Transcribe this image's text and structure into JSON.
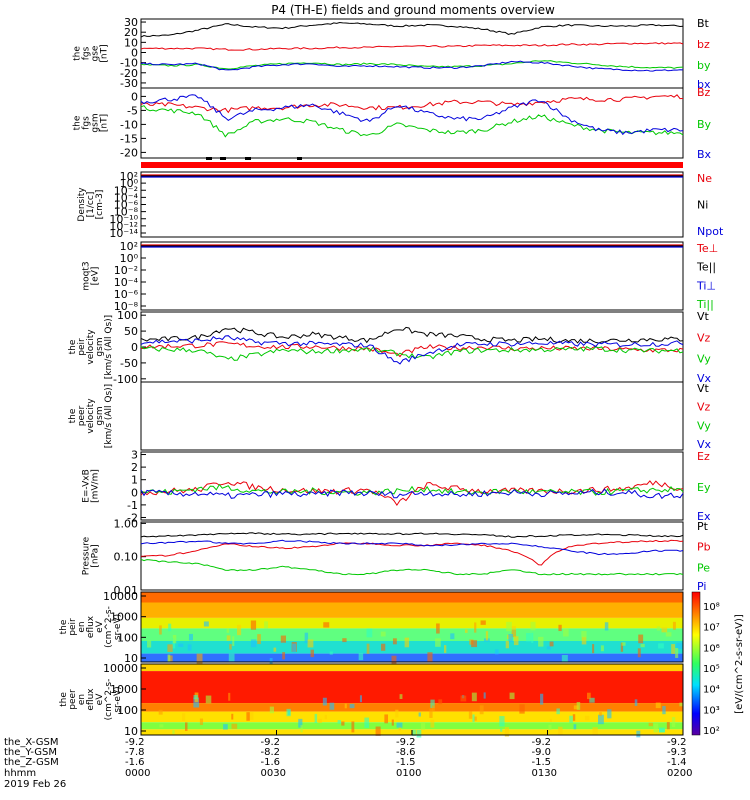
{
  "title": "P4 (TH-E) fields and ground moments overview",
  "colors": {
    "black": "#000000",
    "red": "#e8000b",
    "green": "#00c800",
    "blue": "#0000dc"
  },
  "chart_data": [
    {
      "type": "line",
      "id": "p1",
      "ylabel": [
        "the",
        "fgs",
        "gse",
        "[nT]"
      ],
      "ticks": [
        "30",
        "20",
        "10",
        "0",
        "-10",
        "-20",
        "-30"
      ],
      "tickvals": [
        30,
        20,
        10,
        0,
        -10,
        -20,
        -30
      ],
      "ylim": [
        -35,
        33
      ],
      "series": [
        {
          "name": "Bt",
          "color": "#000000",
          "values": [
            16,
            17,
            22,
            28,
            25,
            24,
            27,
            29,
            28,
            26,
            27,
            26,
            23,
            18,
            25,
            27,
            26,
            26,
            27,
            26
          ]
        },
        {
          "name": "bz",
          "color": "#e8000b",
          "values": [
            4,
            4,
            4,
            3,
            3,
            4,
            4,
            5,
            5,
            6,
            6,
            6,
            7,
            7,
            7,
            8,
            8,
            9,
            9,
            9
          ]
        },
        {
          "name": "by",
          "color": "#00c800",
          "values": [
            -12,
            -13,
            -12,
            -16,
            -13,
            -11,
            -10,
            -12,
            -11,
            -12,
            -14,
            -14,
            -13,
            -11,
            -8,
            -10,
            -12,
            -14,
            -15,
            -15
          ]
        },
        {
          "name": "bx",
          "color": "#0000dc",
          "values": [
            -11,
            -12,
            -11,
            -18,
            -14,
            -12,
            -11,
            -14,
            -13,
            -14,
            -15,
            -15,
            -13,
            -9,
            -10,
            -13,
            -16,
            -17,
            -18,
            -17
          ]
        }
      ]
    },
    {
      "type": "line",
      "id": "p2",
      "ylabel": [
        "the",
        "fgs",
        "gsm",
        "[nT]"
      ],
      "ticks": [
        "0",
        "-5",
        "-10",
        "-15",
        "-20"
      ],
      "tickvals": [
        0,
        -5,
        -10,
        -15,
        -20
      ],
      "ylim": [
        -22,
        3
      ],
      "series": [
        {
          "name": "Bz",
          "color": "#e8000b",
          "values": [
            -3,
            -3,
            -4,
            -5,
            -4,
            -4,
            -3,
            -3,
            -4,
            -4,
            -3,
            -2,
            -2,
            -3,
            -2,
            -1,
            -1,
            -1,
            0,
            0
          ]
        },
        {
          "name": "By",
          "color": "#00c800",
          "values": [
            -4,
            -5,
            -6,
            -14,
            -9,
            -8,
            -9,
            -12,
            -14,
            -10,
            -12,
            -13,
            -12,
            -9,
            -7,
            -10,
            -12,
            -13,
            -13,
            -13
          ]
        },
        {
          "name": "Bx",
          "color": "#0000dc",
          "values": [
            -2,
            -1,
            0,
            -8,
            -5,
            -4,
            -3,
            -6,
            -9,
            -3,
            -6,
            -8,
            -8,
            -4,
            -1,
            -8,
            -12,
            -13,
            -12,
            -12
          ]
        }
      ]
    },
    {
      "type": "line",
      "id": "p3",
      "ylabel": [
        "Density",
        "[1/cc]",
        "[cm-3]"
      ],
      "ticks": [
        "10²",
        "10⁰",
        "10⁻²",
        "10⁻⁴",
        "10⁻⁶",
        "10⁻⁸",
        "10⁻¹⁰",
        "10⁻¹²",
        "10⁻¹⁴"
      ],
      "legend": [
        {
          "name": "Ne",
          "color": "#e8000b"
        },
        {
          "name": "Ni",
          "color": "#000000"
        },
        {
          "name": "Npot",
          "color": "#0000dc"
        }
      ]
    },
    {
      "type": "line",
      "id": "p4",
      "ylabel": [
        "moqt3",
        "[eV]"
      ],
      "ticks": [
        "10²",
        "10⁰",
        "10⁻²",
        "10⁻⁴",
        "10⁻⁶",
        "10⁻⁸"
      ],
      "legend": [
        {
          "name": "Te⊥",
          "color": "#e8000b"
        },
        {
          "name": "Te||",
          "color": "#000000"
        },
        {
          "name": "Ti⊥",
          "color": "#0000dc"
        },
        {
          "name": "Ti||",
          "color": "#00c800"
        }
      ]
    },
    {
      "type": "line",
      "id": "p5",
      "ylabel": [
        "the",
        "peir",
        "velocity",
        "gsm",
        "[km/s (All Qs)]"
      ],
      "ticks": [
        "100",
        "50",
        "0",
        "-50",
        "-100"
      ],
      "tickvals": [
        100,
        50,
        0,
        -50,
        -100
      ],
      "ylim": [
        -110,
        110
      ],
      "series": [
        {
          "name": "Vt",
          "color": "#000000",
          "values": [
            22,
            25,
            30,
            60,
            45,
            30,
            40,
            30,
            20,
            60,
            40,
            35,
            25,
            20,
            25,
            20,
            20,
            22,
            25,
            24
          ]
        },
        {
          "name": "Vz",
          "color": "#e8000b",
          "values": [
            0,
            3,
            5,
            10,
            3,
            0,
            2,
            -3,
            -5,
            -25,
            0,
            -3,
            0,
            -5,
            -4,
            -5,
            -5,
            -8,
            -10,
            -10
          ]
        },
        {
          "name": "Vy",
          "color": "#00c800",
          "values": [
            -5,
            -8,
            -10,
            -40,
            -25,
            -10,
            -15,
            -10,
            -8,
            -20,
            -35,
            -15,
            -10,
            -10,
            -8,
            -8,
            -5,
            -10,
            -12,
            -10
          ]
        },
        {
          "name": "Vx",
          "color": "#0000dc",
          "values": [
            15,
            18,
            20,
            30,
            15,
            12,
            10,
            8,
            5,
            -50,
            -20,
            5,
            10,
            10,
            12,
            10,
            8,
            8,
            10,
            12
          ]
        }
      ]
    },
    {
      "type": "line",
      "id": "p6",
      "ylabel": [
        "the",
        "peer",
        "velocity",
        "gsm",
        "[km/s (All Qs)]"
      ],
      "ticks": [],
      "legend": [
        {
          "name": "Vt",
          "color": "#000000"
        },
        {
          "name": "Vz",
          "color": "#e8000b"
        },
        {
          "name": "Vy",
          "color": "#00c800"
        },
        {
          "name": "Vx",
          "color": "#0000dc"
        }
      ]
    },
    {
      "type": "line",
      "id": "p7",
      "ylabel": [
        "E=-VxB",
        "[mV/m]"
      ],
      "ticks": [
        "3",
        "2",
        "1",
        "0",
        "-1",
        "-2"
      ],
      "tickvals": [
        3,
        2,
        1,
        0,
        -1,
        -2
      ],
      "ylim": [
        -2.2,
        3.2
      ],
      "series": [
        {
          "name": "Ez",
          "color": "#e8000b",
          "values": [
            0,
            0.1,
            0.2,
            0.9,
            0.4,
            0.2,
            0.1,
            0.1,
            0.2,
            -0.9,
            0.6,
            0.3,
            0.1,
            0.1,
            0.1,
            0.1,
            0.2,
            0.3,
            0.8,
            0.3
          ]
        },
        {
          "name": "Ey",
          "color": "#00c800",
          "values": [
            0.1,
            0,
            0.3,
            0.4,
            0.1,
            0,
            0.1,
            0,
            0,
            0.1,
            0.3,
            0,
            0,
            0.1,
            0,
            0,
            0,
            0.1,
            0.2,
            0.2
          ]
        },
        {
          "name": "Ex",
          "color": "#0000dc",
          "values": [
            0,
            -0.1,
            -0.1,
            -0.3,
            -0.2,
            -0.1,
            -0.2,
            0,
            -0.1,
            -0.2,
            0,
            -0.2,
            -0.1,
            0,
            -0.1,
            -0.1,
            0,
            0,
            -0.3,
            -0.2
          ]
        }
      ]
    },
    {
      "type": "line",
      "id": "p8",
      "ylabel": [
        "Pressure",
        "[nPa]"
      ],
      "ticks": [
        "1.00",
        "0.10",
        "0.01"
      ],
      "tickvals": [
        1,
        0.1,
        0.01
      ],
      "ylim": [
        0.01,
        1.1
      ],
      "log": true,
      "series": [
        {
          "name": "Pt",
          "color": "#000000",
          "values": [
            0.4,
            0.42,
            0.45,
            0.5,
            0.5,
            0.48,
            0.47,
            0.5,
            0.5,
            0.48,
            0.5,
            0.48,
            0.45,
            0.4,
            0.42,
            0.44,
            0.46,
            0.45,
            0.42,
            0.42
          ]
        },
        {
          "name": "Pb",
          "color": "#e8000b",
          "values": [
            0.1,
            0.11,
            0.15,
            0.25,
            0.2,
            0.18,
            0.2,
            0.25,
            0.25,
            0.22,
            0.22,
            0.25,
            0.22,
            0.15,
            0.05,
            0.2,
            0.25,
            0.28,
            0.3,
            0.3
          ]
        },
        {
          "name": "Pe",
          "color": "#00c800",
          "values": [
            0.08,
            0.07,
            0.06,
            0.04,
            0.04,
            0.05,
            0.04,
            0.03,
            0.03,
            0.04,
            0.04,
            0.03,
            0.03,
            0.04,
            0.03,
            0.03,
            0.03,
            0.03,
            0.03,
            0.03
          ]
        },
        {
          "name": "Pi",
          "color": "#0000dc",
          "values": [
            0.25,
            0.26,
            0.3,
            0.25,
            0.25,
            0.3,
            0.28,
            0.25,
            0.25,
            0.25,
            0.22,
            0.22,
            0.25,
            0.25,
            0.2,
            0.15,
            0.12,
            0.12,
            0.15,
            0.15
          ]
        }
      ]
    },
    {
      "type": "heatmap",
      "id": "p9",
      "ylabel": [
        "the",
        "peir",
        "en",
        "eflux",
        "eV",
        "(cm^2-s-",
        "sr-eV)"
      ],
      "ticks": [
        "10000",
        "1000",
        "100",
        "10"
      ]
    },
    {
      "type": "heatmap",
      "id": "p10",
      "ylabel": [
        "the",
        "peer",
        "en",
        "eflux",
        "eV",
        "(cm^2-s-",
        "sr-eV)"
      ],
      "ticks": [
        "10000",
        "1000",
        "100",
        "10"
      ]
    }
  ],
  "colorbar": {
    "label": "[eV/(cm^2-s-sr-eV)]",
    "ticks": [
      "10⁸",
      "10⁷",
      "10⁶",
      "10⁵",
      "10⁴",
      "10³",
      "10²"
    ]
  },
  "xaxis": {
    "row_labels": [
      "the_X-GSM",
      "the_Y-GSM",
      "the_Z-GSM",
      "hhmm",
      "2019 Feb 26"
    ],
    "columns": [
      {
        "x": "-9.2",
        "y": "-7.8",
        "z": "-1.6",
        "t": "0000"
      },
      {
        "x": "-9.2",
        "y": "-8.2",
        "z": "-1.6",
        "t": "0030"
      },
      {
        "x": "-9.2",
        "y": "-8.6",
        "z": "-1.5",
        "t": "0100"
      },
      {
        "x": "-9.2",
        "y": "-9.0",
        "z": "-1.5",
        "t": "0130"
      },
      {
        "x": "-9.2",
        "y": "-9.3",
        "z": "-1.4",
        "t": "0200"
      }
    ]
  }
}
